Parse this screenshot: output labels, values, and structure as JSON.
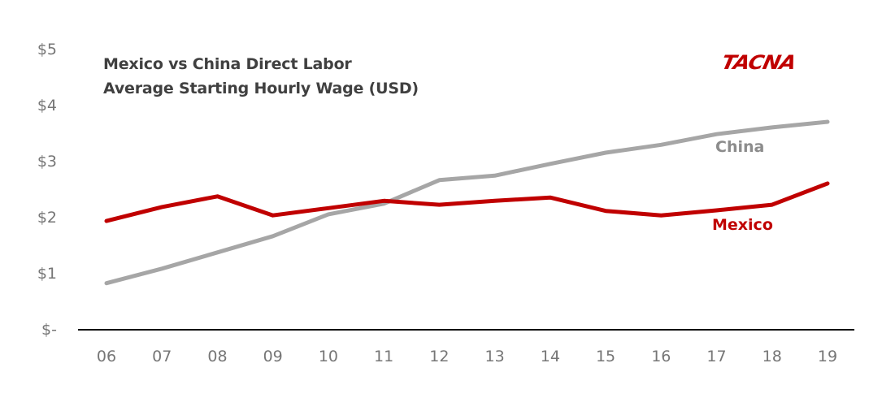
{
  "chart_data": {
    "type": "line",
    "title": "Mexico vs China Direct Labor",
    "subtitle": "Average Starting Hourly Wage (USD)",
    "xlabel": "",
    "ylabel": "",
    "categories": [
      "06",
      "07",
      "08",
      "09",
      "10",
      "11",
      "12",
      "13",
      "14",
      "15",
      "16",
      "17",
      "18",
      "19"
    ],
    "series": [
      {
        "name": "Mexico",
        "color": "#c00000",
        "values": [
          1.94,
          2.19,
          2.38,
          2.04,
          2.17,
          2.3,
          2.23,
          2.3,
          2.36,
          2.12,
          2.04,
          2.13,
          2.23,
          2.61
        ]
      },
      {
        "name": "China",
        "color": "#a6a6a6",
        "values": [
          0.83,
          1.09,
          1.38,
          1.67,
          2.06,
          2.25,
          2.67,
          2.75,
          2.96,
          3.16,
          3.3,
          3.49,
          3.61,
          3.71
        ]
      }
    ],
    "ylim": [
      0,
      5
    ],
    "y_ticks": [
      0,
      1,
      2,
      3,
      4,
      5
    ],
    "y_tick_labels": [
      "$-",
      "$1",
      "$2",
      "$3",
      "$4",
      "$5"
    ],
    "grid": false,
    "legend": "inline labels near line ends"
  },
  "title": {
    "line1": "Mexico vs China Direct Labor",
    "line2": "Average Starting Hourly Wage (USD)"
  },
  "logo": {
    "text": "TACNA",
    "color": "#c00000"
  },
  "y_axis": {
    "labels": [
      "$5",
      "$4",
      "$3",
      "$2",
      "$1",
      "$-"
    ]
  },
  "x_axis": {
    "labels": [
      "06",
      "07",
      "08",
      "09",
      "10",
      "11",
      "12",
      "13",
      "14",
      "15",
      "16",
      "17",
      "18",
      "19"
    ]
  },
  "series_labels": {
    "china": "China",
    "mexico": "Mexico"
  },
  "colors": {
    "mexico": "#c00000",
    "china": "#a6a6a6",
    "axis": "#000000",
    "tick_text": "#767676",
    "title_text": "#404040",
    "china_label": "#8c8c8c"
  }
}
